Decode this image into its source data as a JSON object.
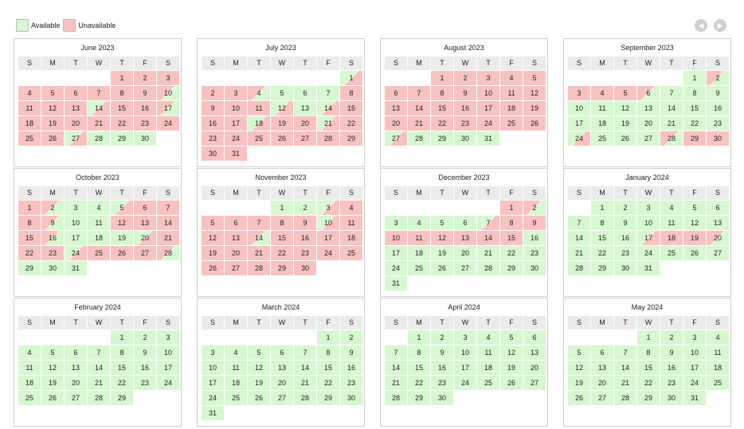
{
  "legend": {
    "available_label": "Available",
    "unavailable_label": "Unavailable",
    "available_color": "#d7f7d0",
    "unavailable_color": "#f7c2c0"
  },
  "nav": {
    "prev_icon": "chevron-left-icon",
    "next_icon": "chevron-right-icon"
  },
  "weekdays": [
    "S",
    "M",
    "T",
    "W",
    "T",
    "F",
    "S"
  ],
  "months": [
    {
      "title": "June 2023",
      "first_weekday": 4,
      "days": [
        "u",
        "u",
        "u",
        "u",
        "u",
        "u",
        "u",
        "u",
        "u",
        "ua",
        "u",
        "u",
        "u",
        "au",
        "u",
        "u",
        "ua",
        "u",
        "u",
        "u",
        "u",
        "u",
        "u",
        "u",
        "u",
        "u",
        "au",
        "a",
        "a",
        "a"
      ]
    },
    {
      "title": "July 2023",
      "first_weekday": 6,
      "days": [
        "au",
        "u",
        "u",
        "ua",
        "a",
        "a",
        "a",
        "u",
        "u",
        "u",
        "u",
        "au",
        "a",
        "au",
        "u",
        "u",
        "u",
        "au",
        "u",
        "u",
        "au",
        "u",
        "u",
        "u",
        "u",
        "u",
        "u",
        "u",
        "u",
        "u",
        "u"
      ]
    },
    {
      "title": "August 2023",
      "first_weekday": 2,
      "days": [
        "u",
        "u",
        "u",
        "u",
        "u",
        "u",
        "u",
        "u",
        "u",
        "u",
        "u",
        "u",
        "u",
        "u",
        "u",
        "u",
        "u",
        "u",
        "u",
        "u",
        "u",
        "u",
        "u",
        "u",
        "u",
        "u",
        "au",
        "a",
        "a",
        "a",
        "a"
      ]
    },
    {
      "title": "September 2023",
      "first_weekday": 5,
      "days": [
        "a",
        "ua",
        "u",
        "u",
        "u",
        "ua",
        "a",
        "a",
        "a",
        "a",
        "a",
        "a",
        "a",
        "a",
        "a",
        "a",
        "a",
        "a",
        "a",
        "a",
        "a",
        "a",
        "a",
        "au",
        "a",
        "a",
        "a",
        "ua",
        "u",
        "u"
      ]
    },
    {
      "title": "October 2023",
      "first_weekday": 0,
      "days": [
        "u",
        "ua",
        "a",
        "a",
        "au",
        "u",
        "u",
        "u",
        "ua",
        "a",
        "a",
        "u",
        "u",
        "u",
        "u",
        "ua",
        "a",
        "a",
        "a",
        "au",
        "u",
        "u",
        "u",
        "au",
        "u",
        "u",
        "u",
        "ua",
        "a",
        "a",
        "a"
      ]
    },
    {
      "title": "November 2023",
      "first_weekday": 3,
      "days": [
        "a",
        "a",
        "au",
        "u",
        "u",
        "u",
        "u",
        "u",
        "u",
        "au",
        "u",
        "u",
        "u",
        "ua",
        "u",
        "u",
        "u",
        "u",
        "u",
        "u",
        "u",
        "u",
        "u",
        "u",
        "u",
        "u",
        "u",
        "u",
        "u",
        "u"
      ]
    },
    {
      "title": "December 2023",
      "first_weekday": 5,
      "days": [
        "u",
        "ua",
        "a",
        "a",
        "a",
        "a",
        "au",
        "u",
        "u",
        "u",
        "u",
        "u",
        "u",
        "u",
        "u",
        "a",
        "a",
        "a",
        "a",
        "a",
        "a",
        "a",
        "a",
        "a",
        "a",
        "a",
        "a",
        "a",
        "a",
        "a",
        "a"
      ]
    },
    {
      "title": "January 2024",
      "first_weekday": 1,
      "days": [
        "a",
        "a",
        "a",
        "a",
        "a",
        "a",
        "a",
        "a",
        "a",
        "a",
        "a",
        "a",
        "a",
        "a",
        "a",
        "a",
        "au",
        "u",
        "u",
        "ua",
        "a",
        "a",
        "a",
        "a",
        "a",
        "a",
        "a",
        "a",
        "a",
        "a",
        "a"
      ]
    },
    {
      "title": "February 2024",
      "first_weekday": 4,
      "days": [
        "a",
        "a",
        "a",
        "a",
        "a",
        "a",
        "a",
        "a",
        "a",
        "a",
        "a",
        "a",
        "a",
        "a",
        "a",
        "a",
        "a",
        "a",
        "a",
        "a",
        "a",
        "a",
        "a",
        "a",
        "a",
        "a",
        "a",
        "a",
        "a"
      ]
    },
    {
      "title": "March 2024",
      "first_weekday": 5,
      "days": [
        "a",
        "a",
        "a",
        "a",
        "a",
        "a",
        "a",
        "a",
        "a",
        "a",
        "a",
        "a",
        "a",
        "a",
        "a",
        "a",
        "a",
        "a",
        "a",
        "a",
        "a",
        "a",
        "a",
        "a",
        "a",
        "a",
        "a",
        "a",
        "a",
        "a",
        "a"
      ]
    },
    {
      "title": "April 2024",
      "first_weekday": 1,
      "days": [
        "a",
        "a",
        "a",
        "a",
        "a",
        "a",
        "a",
        "a",
        "a",
        "a",
        "a",
        "a",
        "a",
        "a",
        "a",
        "a",
        "a",
        "a",
        "a",
        "a",
        "a",
        "a",
        "a",
        "a",
        "a",
        "a",
        "a",
        "a",
        "a",
        "a"
      ]
    },
    {
      "title": "May 2024",
      "first_weekday": 3,
      "days": [
        "a",
        "a",
        "a",
        "a",
        "a",
        "a",
        "a",
        "a",
        "a",
        "a",
        "a",
        "a",
        "a",
        "a",
        "a",
        "a",
        "a",
        "a",
        "a",
        "a",
        "a",
        "a",
        "a",
        "a",
        "a",
        "a",
        "a",
        "a",
        "a",
        "a",
        "a"
      ]
    }
  ]
}
